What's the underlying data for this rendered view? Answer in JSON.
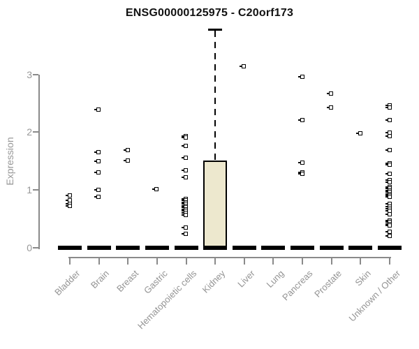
{
  "title": "ENSG00000125975 - C20orf173",
  "y_axis": {
    "label": "Expression",
    "tick_labels": [
      "0",
      "1",
      "2",
      "3"
    ]
  },
  "colors": {
    "box_fill": "#EDE8CE",
    "box_border": "#000000",
    "axis": "#8a8a8a",
    "tick_label": "#989898",
    "title_text": "#111111",
    "point": "#000000"
  },
  "chart_data": {
    "type": "box",
    "title": "ENSG00000125975 - C20orf173",
    "xlabel": "",
    "ylabel": "Expression",
    "ylim": [
      0,
      3.9
    ],
    "yticks": [
      0,
      1,
      2,
      3
    ],
    "grid": false,
    "legend": false,
    "categories": [
      "Bladder",
      "Brain",
      "Breast",
      "Gastric",
      "Hematopoietic cells",
      "Kidney",
      "Liver",
      "Lung",
      "Pancreas",
      "Prostate",
      "Skin",
      "Unknown / Other"
    ],
    "boxes": [
      {
        "category": "Bladder",
        "q1": 0,
        "median": 0,
        "q3": 0,
        "whisker_low": 0,
        "whisker_high": 0,
        "outliers": [
          0.9,
          0.82,
          0.75,
          0.72
        ]
      },
      {
        "category": "Brain",
        "q1": 0,
        "median": 0,
        "q3": 0,
        "whisker_low": 0,
        "whisker_high": 0,
        "outliers": [
          2.39,
          1.65,
          1.49,
          1.3,
          1.0,
          0.88
        ]
      },
      {
        "category": "Breast",
        "q1": 0,
        "median": 0,
        "q3": 0,
        "whisker_low": 0,
        "whisker_high": 0,
        "outliers": [
          1.69,
          1.5
        ]
      },
      {
        "category": "Gastric",
        "q1": 0,
        "median": 0,
        "q3": 0,
        "whisker_low": 0,
        "whisker_high": 0,
        "outliers": [
          1.01
        ]
      },
      {
        "category": "Hematopoietic cells",
        "q1": 0,
        "median": 0,
        "q3": 0,
        "whisker_low": 0,
        "whisker_high": 0,
        "outliers": [
          1.93,
          1.9,
          1.76,
          1.55,
          1.34,
          1.22,
          0.84,
          0.81,
          0.78,
          0.75,
          0.72,
          0.69,
          0.66,
          0.63,
          0.6,
          0.56,
          0.34,
          0.24
        ]
      },
      {
        "category": "Kidney",
        "q1": 0,
        "median": 0,
        "q3": 1.51,
        "whisker_low": 0,
        "whisker_high": 3.78,
        "outliers": []
      },
      {
        "category": "Liver",
        "q1": 0,
        "median": 0,
        "q3": 0,
        "whisker_low": 0,
        "whisker_high": 0,
        "outliers": [
          3.13
        ]
      },
      {
        "category": "Lung",
        "q1": 0,
        "median": 0,
        "q3": 0,
        "whisker_low": 0,
        "whisker_high": 0,
        "outliers": []
      },
      {
        "category": "Pancreas",
        "q1": 0,
        "median": 0,
        "q3": 0,
        "whisker_low": 0,
        "whisker_high": 0,
        "outliers": [
          2.95,
          2.21,
          1.47,
          1.3,
          1.27
        ]
      },
      {
        "category": "Prostate",
        "q1": 0,
        "median": 0,
        "q3": 0,
        "whisker_low": 0,
        "whisker_high": 0,
        "outliers": [
          2.66,
          2.42
        ]
      },
      {
        "category": "Skin",
        "q1": 0,
        "median": 0,
        "q3": 0,
        "whisker_low": 0,
        "whisker_high": 0,
        "outliers": [
          1.97
        ]
      },
      {
        "category": "Unknown / Other",
        "q1": 0,
        "median": 0,
        "q3": 0,
        "whisker_low": 0,
        "whisker_high": 0,
        "outliers": [
          2.46,
          2.42,
          2.2,
          1.99,
          1.93,
          1.69,
          1.46,
          1.43,
          1.27,
          1.17,
          1.13,
          1.05,
          1.02,
          0.99,
          0.96,
          0.93,
          0.9,
          0.87,
          0.75,
          0.71,
          0.67,
          0.63,
          0.57,
          0.47,
          0.44,
          0.41,
          0.38,
          0.27,
          0.2
        ]
      }
    ]
  }
}
